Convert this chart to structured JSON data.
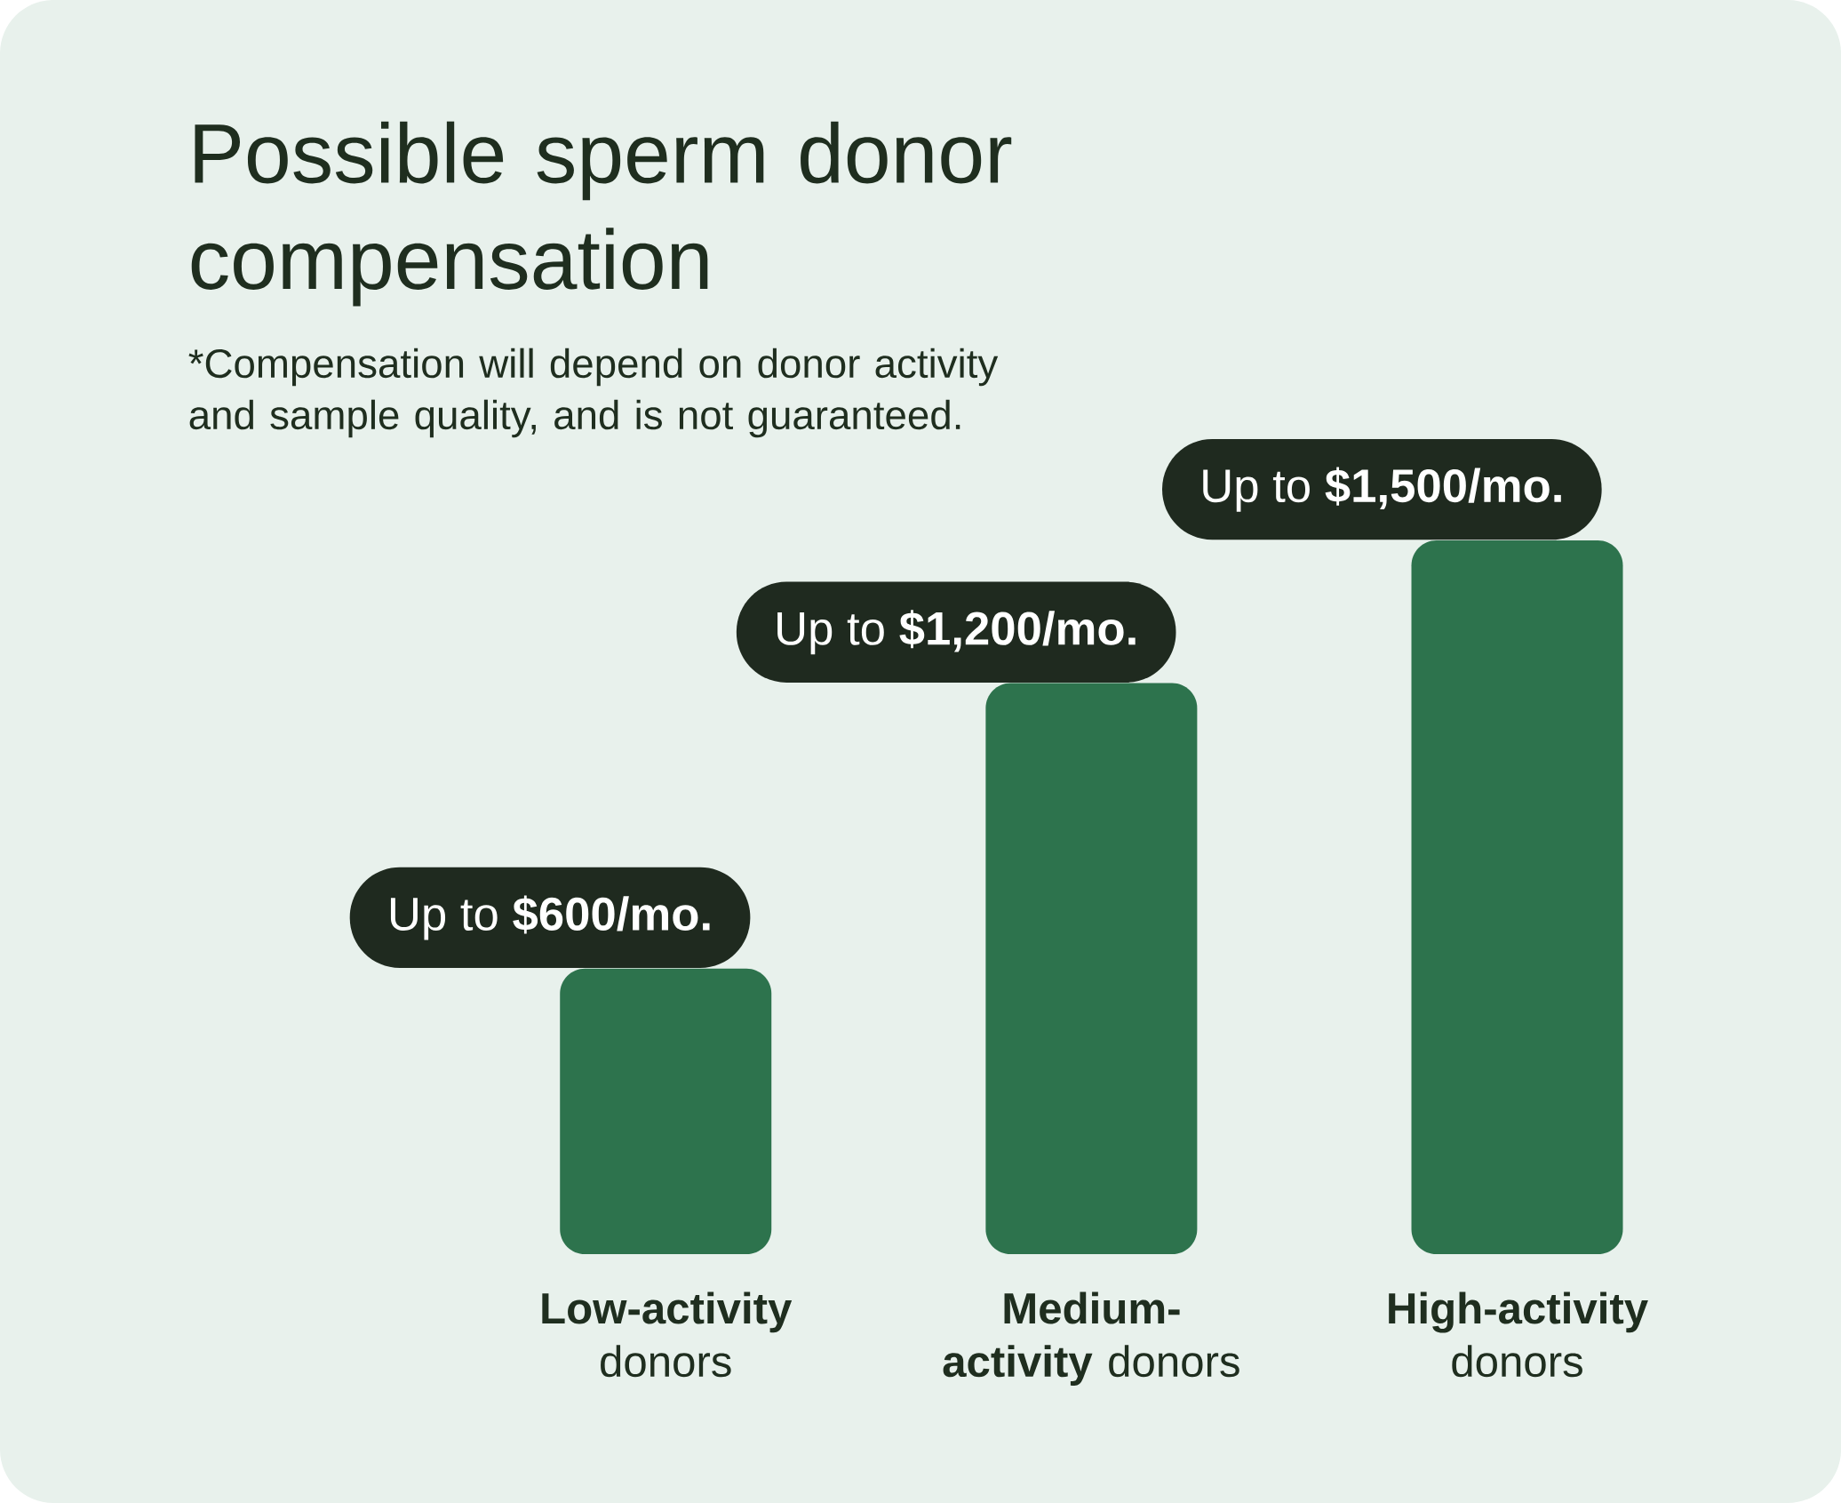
{
  "chart_data": {
    "type": "bar",
    "title": "Possible sperm donor compensation",
    "subtitle": "*Compensation will depend on donor activity and sample quality, and is not guaranteed.",
    "categories": [
      "**Low-activity** donors",
      "**Medium-activity** donors",
      "**High-activity** donors"
    ],
    "values": [
      600,
      1200,
      1500
    ],
    "value_labels": [
      "Up to **$600/mo.**",
      "Up to **$1,200/mo.**",
      "Up to **$1,500/mo.**"
    ],
    "color": "#2d734d"
  }
}
